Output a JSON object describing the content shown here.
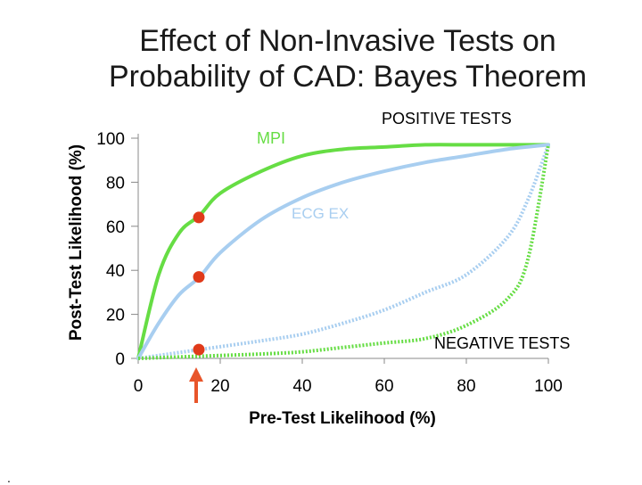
{
  "title": {
    "line1": "Effect of Non-Invasive Tests on",
    "line2": "Probability of CAD: Bayes Theorem"
  },
  "corner_mark": ".",
  "chart_data": {
    "type": "line",
    "title": "Effect of Non-Invasive Tests on Probability of CAD: Bayes Theorem",
    "xlabel": "Pre-Test Likelihood (%)",
    "ylabel": "Post-Test Likelihood (%)",
    "xlim": [
      0,
      100
    ],
    "ylim": [
      0,
      100
    ],
    "x_ticks": [
      "0",
      "20",
      "40",
      "60",
      "80",
      "100"
    ],
    "y_ticks": [
      "0",
      "20",
      "40",
      "60",
      "80",
      "100"
    ],
    "colors": {
      "mpi": "#66dd44",
      "ecg": "#a8cef0",
      "marker": "#e03a1a",
      "arrow": "#e8552a"
    },
    "series": [
      {
        "name": "MPI positive",
        "style": "solid",
        "color_key": "mpi",
        "x": [
          0,
          5,
          10,
          15,
          20,
          30,
          40,
          50,
          60,
          70,
          80,
          90,
          100
        ],
        "y": [
          0,
          38,
          57,
          65,
          75,
          85,
          92,
          95,
          96,
          97,
          97,
          97,
          97
        ]
      },
      {
        "name": "ECG EX positive",
        "style": "solid",
        "color_key": "ecg",
        "x": [
          0,
          5,
          10,
          15,
          20,
          30,
          40,
          50,
          60,
          70,
          80,
          90,
          100
        ],
        "y": [
          0,
          16,
          29,
          37,
          48,
          63,
          73,
          80,
          85,
          89,
          92,
          95,
          97
        ]
      },
      {
        "name": "ECG EX negative",
        "style": "dotted",
        "color_key": "ecg",
        "x": [
          0,
          15,
          30,
          40,
          50,
          60,
          70,
          80,
          90,
          95,
          100
        ],
        "y": [
          0,
          4,
          8,
          11,
          16,
          22,
          30,
          38,
          55,
          72,
          97
        ]
      },
      {
        "name": "MPI negative",
        "style": "dotted",
        "color_key": "mpi",
        "x": [
          0,
          15,
          30,
          40,
          50,
          60,
          70,
          80,
          90,
          95,
          100
        ],
        "y": [
          0,
          1,
          2,
          3,
          5,
          7,
          9,
          15,
          27,
          45,
          97
        ]
      }
    ],
    "markers": [
      {
        "x": 15,
        "y": 64
      },
      {
        "x": 15,
        "y": 37
      },
      {
        "x": 15,
        "y": 4
      }
    ],
    "arrow": {
      "x": 15,
      "label": ""
    },
    "annotations": {
      "mpi": "MPI",
      "ecg": "ECG EX",
      "positive": "POSITIVE  TESTS",
      "negative": "NEGATIVE  TESTS"
    }
  }
}
